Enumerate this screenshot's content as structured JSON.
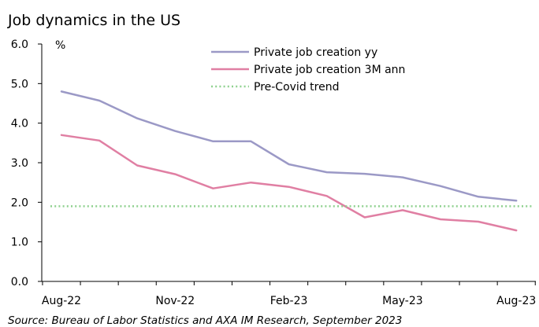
{
  "chart_data": {
    "type": "line",
    "title": "Job dynamics in the US",
    "ylabel_unit": "%",
    "source": "Source: Bureau of Labor Statistics and AXA IM Research, September 2023",
    "x": [
      "Aug-22",
      "Sep-22",
      "Oct-22",
      "Nov-22",
      "Dec-22",
      "Jan-23",
      "Feb-23",
      "Mar-23",
      "Apr-23",
      "May-23",
      "Jun-23",
      "Jul-23",
      "Aug-23"
    ],
    "x_tick_labels": [
      "Aug-22",
      "Nov-22",
      "Feb-23",
      "May-23",
      "Aug-23"
    ],
    "y_tick_labels": [
      "0.0",
      "1.0",
      "2.0",
      "3.0",
      "4.0",
      "5.0",
      "6.0"
    ],
    "ylim": [
      0,
      6
    ],
    "grid": false,
    "legend_position": "top-right",
    "series": [
      {
        "name": "Private job creation yy",
        "color": "#9b99c6",
        "style": "solid",
        "values": [
          4.8,
          4.57,
          4.12,
          3.8,
          3.54,
          3.54,
          2.96,
          2.76,
          2.72,
          2.63,
          2.41,
          2.14,
          2.04
        ]
      },
      {
        "name": "Private job creation 3M ann",
        "color": "#e07fa3",
        "style": "solid",
        "values": [
          3.7,
          3.56,
          2.93,
          2.71,
          2.35,
          2.5,
          2.39,
          2.16,
          1.62,
          1.8,
          1.57,
          1.51,
          1.29
        ]
      },
      {
        "name": "Pre-Covid trend",
        "color": "#8fd18f",
        "style": "dotted",
        "values": [
          1.9,
          1.9,
          1.9,
          1.9,
          1.9,
          1.9,
          1.9,
          1.9,
          1.9,
          1.9,
          1.9,
          1.9,
          1.9
        ]
      }
    ]
  }
}
